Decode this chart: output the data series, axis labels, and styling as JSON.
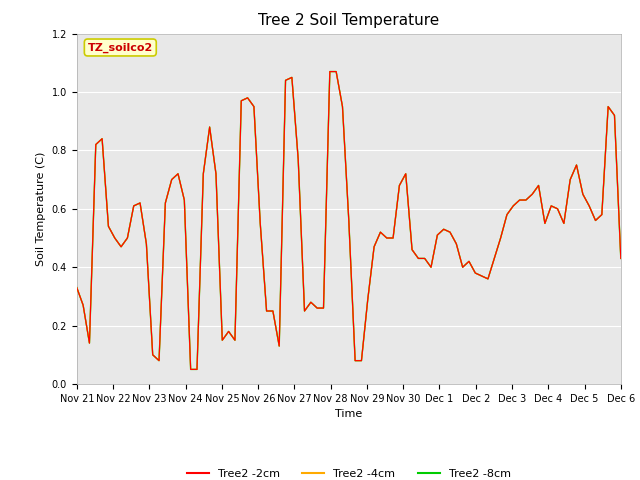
{
  "title": "Tree 2 Soil Temperature",
  "xlabel": "Time",
  "ylabel": "Soil Temperature (C)",
  "ylim": [
    0.0,
    1.2
  ],
  "annotation_text": "TZ_soilco2",
  "annotation_bg": "#ffffcc",
  "annotation_border": "#cccc00",
  "annotation_fg": "#cc0000",
  "legend_labels": [
    "Tree2 -2cm",
    "Tree2 -4cm",
    "Tree2 -8cm"
  ],
  "legend_colors": [
    "#ff0000",
    "#ffaa00",
    "#00cc00"
  ],
  "bg_color": "#e8e8e8",
  "fig_bg": "#ffffff",
  "x_tick_labels": [
    "Nov 21",
    "Nov 22",
    "Nov 23",
    "Nov 24",
    "Nov 25",
    "Nov 26",
    "Nov 27",
    "Nov 28",
    "Nov 29",
    "Nov 30",
    "Dec 1",
    "Dec 2",
    "Dec 3",
    "Dec 4",
    "Dec 5",
    "Dec 6"
  ],
  "x_ticks": [
    0,
    24,
    48,
    72,
    96,
    120,
    144,
    168,
    192,
    216,
    240,
    264,
    288,
    312,
    336,
    360
  ],
  "y_data": [
    0.33,
    0.27,
    0.14,
    0.82,
    0.84,
    0.54,
    0.5,
    0.47,
    0.5,
    0.61,
    0.62,
    0.48,
    0.1,
    0.08,
    0.62,
    0.7,
    0.72,
    0.63,
    0.05,
    0.05,
    0.72,
    0.88,
    0.72,
    0.15,
    0.18,
    0.15,
    0.97,
    0.98,
    0.95,
    0.55,
    0.25,
    0.25,
    0.13,
    1.04,
    1.05,
    0.77,
    0.25,
    0.28,
    0.26,
    0.26,
    1.07,
    1.07,
    0.95,
    0.56,
    0.08,
    0.08,
    0.29,
    0.47,
    0.52,
    0.5,
    0.5,
    0.68,
    0.72,
    0.46,
    0.43,
    0.43,
    0.4,
    0.51,
    0.53,
    0.52,
    0.48,
    0.4,
    0.42,
    0.38,
    0.37,
    0.36,
    0.43,
    0.5,
    0.58,
    0.61,
    0.63,
    0.63,
    0.65,
    0.68,
    0.55,
    0.61,
    0.6,
    0.55,
    0.7,
    0.75,
    0.65,
    0.61,
    0.56,
    0.58,
    0.95,
    0.92,
    0.43
  ],
  "title_fontsize": 11,
  "axis_label_fontsize": 8,
  "tick_fontsize": 7,
  "legend_fontsize": 8,
  "annotation_fontsize": 8
}
